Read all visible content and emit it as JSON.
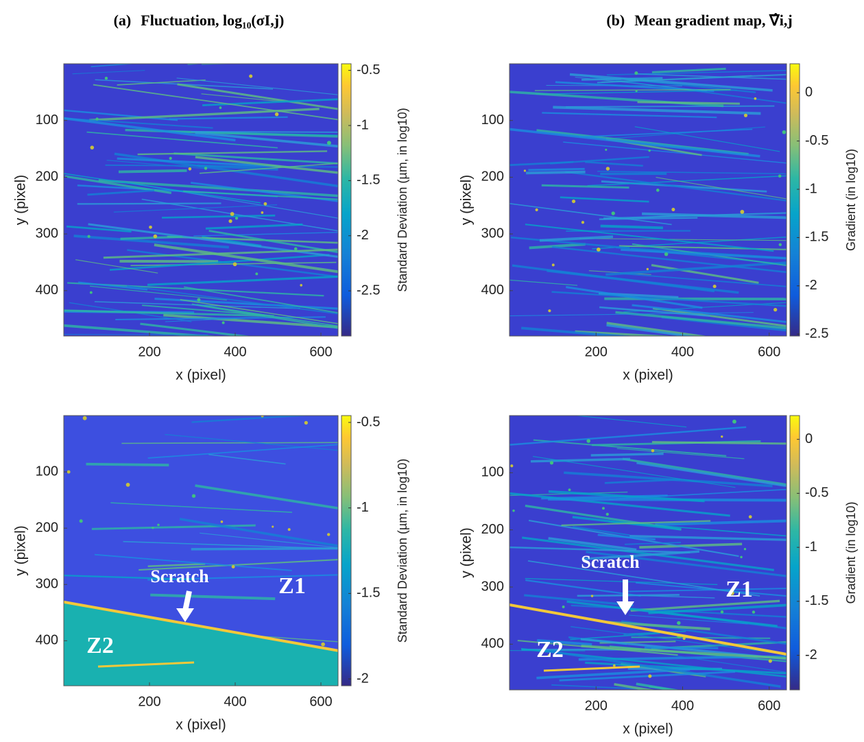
{
  "chart_data": [
    {
      "type": "heatmap",
      "panel_label": "(a)",
      "title": "Fluctuation, log₁₀(σI,j)",
      "colormap": "parula",
      "xlabel": "x (pixel)",
      "ylabel": "y (pixel)",
      "xlim": [
        0,
        640
      ],
      "ylim": [
        480,
        0
      ],
      "xticks": [
        200,
        400,
        600
      ],
      "yticks": [
        100,
        200,
        300,
        400
      ],
      "colorbar": {
        "label": "Standard Deviation (µm, in log10)",
        "lim": [
          -2.91,
          -0.44
        ],
        "ticks": [
          -0.5,
          -1,
          -1.5,
          -2,
          -2.5
        ]
      }
    },
    {
      "type": "heatmap",
      "panel_label": "(b)",
      "title": "Mean gradient map, ∇̂i,j",
      "colormap": "parula",
      "xlabel": "x (pixel)",
      "ylabel": "y (pixel)",
      "xlim": [
        0,
        640
      ],
      "ylim": [
        480,
        0
      ],
      "xticks": [
        200,
        400,
        600
      ],
      "yticks": [
        100,
        200,
        300,
        400
      ],
      "colorbar": {
        "label": "Gradient (in log10)",
        "lim": [
          -2.52,
          0.3
        ],
        "ticks": [
          0,
          -0.5,
          -1,
          -1.5,
          -2,
          -2.5
        ]
      }
    },
    {
      "type": "heatmap",
      "colormap": "parula",
      "xlabel": "x (pixel)",
      "ylabel": "y (pixel)",
      "xlim": [
        0,
        640
      ],
      "ylim": [
        480,
        0
      ],
      "xticks": [
        200,
        400,
        600
      ],
      "yticks": [
        100,
        200,
        300,
        400
      ],
      "colorbar": {
        "label": "Standard Deviation (µm, in log10)",
        "lim": [
          -2.04,
          -0.46
        ],
        "ticks": [
          -0.5,
          -1,
          -1.5,
          -2
        ]
      },
      "annotations": [
        "Scratch",
        "Z1",
        "Z2"
      ]
    },
    {
      "type": "heatmap",
      "colormap": "parula",
      "xlabel": "x (pixel)",
      "ylabel": "y (pixel)",
      "xlim": [
        0,
        640
      ],
      "ylim": [
        480,
        0
      ],
      "xticks": [
        200,
        400,
        600
      ],
      "yticks": [
        100,
        200,
        300,
        400
      ],
      "colorbar": {
        "label": "Gradient (in log10)",
        "lim": [
          -2.32,
          0.22
        ],
        "ticks": [
          0,
          -0.5,
          -1,
          -1.5,
          -2
        ]
      },
      "annotations": [
        "Scratch",
        "Z1",
        "Z2"
      ]
    }
  ]
}
